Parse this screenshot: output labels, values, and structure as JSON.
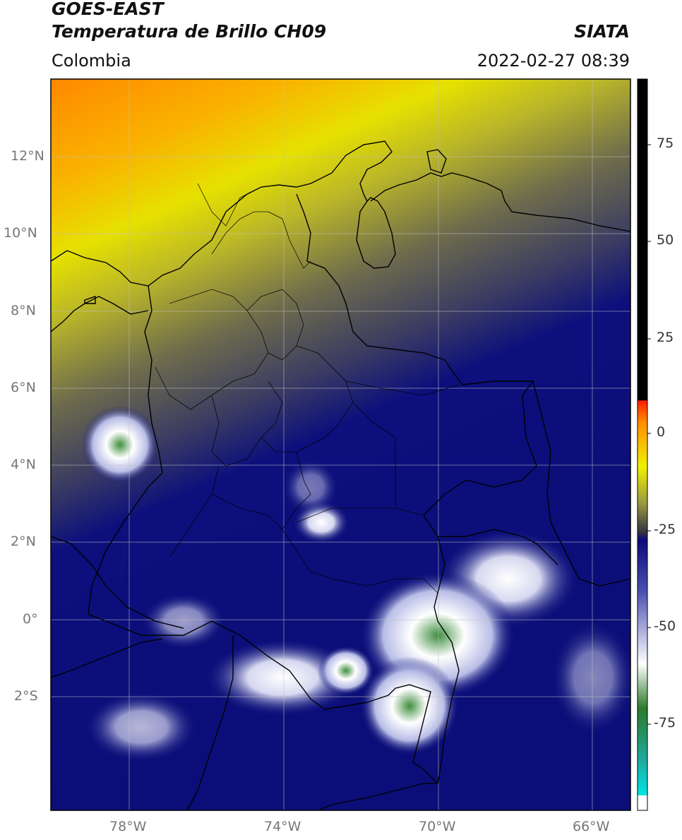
{
  "header": {
    "satellite": "GOES-EAST",
    "product": "Temperatura de Brillo CH09",
    "region": "Colombia",
    "source": "SIATA",
    "datetime": "2022-02-27 08:39"
  },
  "map": {
    "lon_range": [
      -80,
      -65
    ],
    "lat_range": [
      -5,
      14
    ],
    "lat_ticks": [
      "12°N",
      "10°N",
      "8°N",
      "6°N",
      "4°N",
      "2°N",
      "0°",
      "2°S"
    ],
    "lon_ticks": [
      "78°W",
      "74°W",
      "70°W",
      "66°W"
    ],
    "gridlines": true,
    "colors": {
      "warm": "#ff8c00",
      "yellow": "#e8e800",
      "olive": "#7f7f3a",
      "gray": "#4a4a5a",
      "navy": "#0a0a7a",
      "white": "#ffffff",
      "green": "#3a8a3a",
      "border": "#000000"
    }
  },
  "colorbar": {
    "ticks": [
      "75",
      "50",
      "25",
      "0",
      "-25",
      "-50",
      "-75"
    ],
    "range": [
      -95,
      90
    ]
  }
}
